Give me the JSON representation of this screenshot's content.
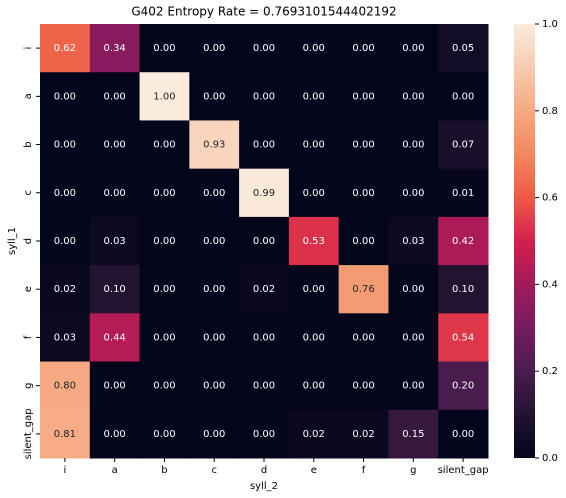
{
  "chart_data": {
    "type": "heatmap",
    "title": "G402 Entropy Rate = 0.7693101544402192",
    "x_label": "syll_2",
    "y_label": "syll_1",
    "x_categories": [
      "i",
      "a",
      "b",
      "c",
      "d",
      "e",
      "f",
      "g",
      "silent_gap"
    ],
    "y_categories": [
      "i",
      "a",
      "b",
      "c",
      "d",
      "e",
      "f",
      "g",
      "silent_gap"
    ],
    "values": [
      [
        0.62,
        0.34,
        0,
        0,
        0,
        0,
        0,
        0,
        0.05
      ],
      [
        0,
        0,
        1,
        0,
        0,
        0,
        0,
        0,
        0
      ],
      [
        0,
        0,
        0,
        0.93,
        0,
        0,
        0,
        0,
        0.07
      ],
      [
        0,
        0,
        0,
        0,
        0.99,
        0,
        0,
        0,
        0.01
      ],
      [
        0,
        0.03,
        0,
        0,
        0,
        0.53,
        0,
        0.03,
        0.42
      ],
      [
        0.02,
        0.1,
        0,
        0,
        0.02,
        0,
        0.76,
        0,
        0.1
      ],
      [
        0.03,
        0.44,
        0,
        0,
        0,
        0,
        0,
        0,
        0.54
      ],
      [
        0.8,
        0,
        0,
        0,
        0,
        0,
        0,
        0,
        0.2
      ],
      [
        0.81,
        0,
        0,
        0,
        0,
        0.02,
        0.02,
        0.15,
        0
      ]
    ],
    "value_labels": [
      [
        "0.62",
        "0.34",
        "0.00",
        "0.00",
        "0.00",
        "0.00",
        "0.00",
        "0.00",
        "0.05"
      ],
      [
        "0.00",
        "0.00",
        "1.00",
        "0.00",
        "0.00",
        "0.00",
        "0.00",
        "0.00",
        "0.00"
      ],
      [
        "0.00",
        "0.00",
        "0.00",
        "0.93",
        "0.00",
        "0.00",
        "0.00",
        "0.00",
        "0.07"
      ],
      [
        "0.00",
        "0.00",
        "0.00",
        "0.00",
        "0.99",
        "0.00",
        "0.00",
        "0.00",
        "0.01"
      ],
      [
        "0.00",
        "0.03",
        "0.00",
        "0.00",
        "0.00",
        "0.53",
        "0.00",
        "0.03",
        "0.42"
      ],
      [
        "0.02",
        "0.10",
        "0.00",
        "0.00",
        "0.02",
        "0.00",
        "0.76",
        "0.00",
        "0.10"
      ],
      [
        "0.03",
        "0.44",
        "0.00",
        "0.00",
        "0.00",
        "0.00",
        "0.00",
        "0.00",
        "0.54"
      ],
      [
        "0.80",
        "0.00",
        "0.00",
        "0.00",
        "0.00",
        "0.00",
        "0.00",
        "0.00",
        "0.20"
      ],
      [
        "0.81",
        "0.00",
        "0.00",
        "0.00",
        "0.00",
        "0.02",
        "0.02",
        "0.15",
        "0.00"
      ]
    ],
    "colormap": "rocket",
    "clim": [
      0,
      1
    ],
    "cticks": [
      {
        "value": 0,
        "label": "0.0"
      },
      0.2,
      0.4,
      0.6,
      0.8,
      {
        "value": 1,
        "label": "1.0"
      }
    ]
  }
}
